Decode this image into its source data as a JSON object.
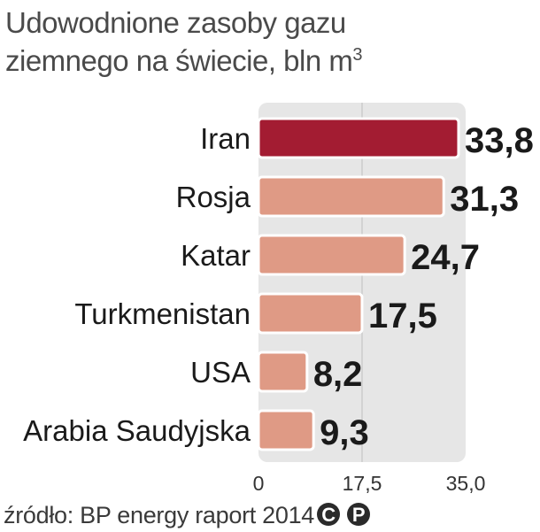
{
  "header": {
    "title_line1": "Udowodnione zasoby gazu",
    "title_line2": "ziemnego na świecie, bln m",
    "title_sup": "3"
  },
  "chart_data": {
    "type": "bar",
    "orientation": "horizontal",
    "categories": [
      "Iran",
      "Rosja",
      "Katar",
      "Turkmenistan",
      "USA",
      "Arabia Saudyjska"
    ],
    "values": [
      33.8,
      31.3,
      24.7,
      17.5,
      8.2,
      9.3
    ],
    "value_labels": [
      "33,8",
      "31,3",
      "24,7",
      "17,5",
      "8,2",
      "9,3"
    ],
    "xlim": [
      0,
      35
    ],
    "xticks": [
      0,
      17.5,
      35
    ],
    "xtick_labels": [
      "0",
      "17,5",
      "35,0"
    ],
    "grid": true,
    "colors": {
      "highlight": "#a31c32",
      "default": "#df9a85",
      "panel": "#e6e6e6",
      "gridline": "#bdbdbd"
    },
    "highlight_index": 0
  },
  "footer": {
    "source": "źródło: BP energy raport 2014",
    "badges": [
      "C",
      "P"
    ]
  }
}
